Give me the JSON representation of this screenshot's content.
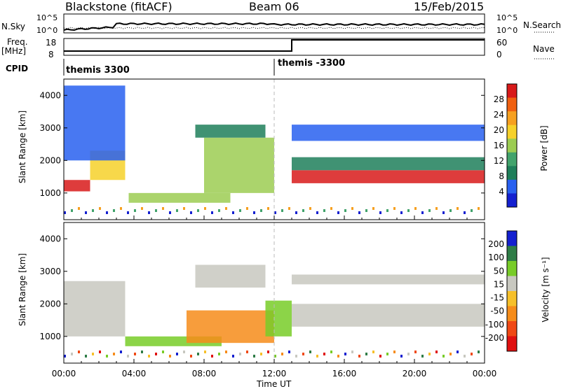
{
  "header": {
    "station": "Blackstone (fitACF)",
    "beam": "Beam 06",
    "date": "15/Feb/2015"
  },
  "noise_panel": {
    "left_label": "N.Sky",
    "right_label": "N.Search",
    "left_ticks": [
      "10^5",
      "10^0"
    ],
    "right_ticks": [
      "10^5",
      "10^0"
    ]
  },
  "freq_panel": {
    "left_label_line1": "Freq.",
    "left_label_line2": "[MHz]",
    "left_ticks": [
      "18",
      "8"
    ],
    "right_label": "Nave",
    "right_ticks": [
      "60",
      "0"
    ]
  },
  "cpid_panel": {
    "label": "CPID",
    "segments": [
      "themis 3300",
      "themis -3300"
    ],
    "segment_bounds_hours": [
      [
        0,
        12
      ],
      [
        12,
        24
      ]
    ]
  },
  "x_axis": {
    "label": "Time UT",
    "ticks": [
      "00:00",
      "04:00",
      "08:00",
      "12:00",
      "16:00",
      "20:00",
      "00:00"
    ]
  },
  "power_panel": {
    "ylabel": "Slant Range [km]",
    "yticks": [
      "1000",
      "2000",
      "3000",
      "4000"
    ],
    "colorbar_label": "Power [dB]",
    "colorbar_ticks": [
      "4",
      "8",
      "12",
      "16",
      "20",
      "24",
      "28"
    ],
    "colors": [
      "#1420d0",
      "#2860f0",
      "#1f7f5a",
      "#42a36c",
      "#9ccc52",
      "#f6d12a",
      "#f6a020",
      "#f06010",
      "#d81a1a"
    ]
  },
  "velocity_panel": {
    "ylabel": "Slant Range [km]",
    "yticks": [
      "1000",
      "2000",
      "3000",
      "4000"
    ],
    "colorbar_label": "Velocity [m s⁻¹]",
    "colorbar_ticks": [
      "200",
      "100",
      "50",
      "15",
      "-15",
      "-50",
      "-100",
      "-200"
    ],
    "colors": [
      "#1420d0",
      "#2f7d47",
      "#78cc28",
      "#c8c8c0",
      "#f6c02a",
      "#f68c1a",
      "#f04814",
      "#e01010"
    ]
  },
  "chart_data": {
    "type": "heatmap",
    "x_range_hours": [
      0,
      24
    ],
    "y_range_km": [
      180,
      4500
    ],
    "power_bands": [
      {
        "t": [
          0,
          1.5
        ],
        "r": [
          1050,
          1400
        ],
        "level": 8
      },
      {
        "t": [
          1.5,
          3.5
        ],
        "r": [
          1400,
          2300
        ],
        "level": 5
      },
      {
        "t": [
          0,
          3.5
        ],
        "r": [
          2000,
          4300
        ],
        "level": 1
      },
      {
        "t": [
          3.7,
          9.5
        ],
        "r": [
          700,
          1000
        ],
        "level": 4
      },
      {
        "t": [
          8,
          12
        ],
        "r": [
          1000,
          2700
        ],
        "level": 4
      },
      {
        "t": [
          7.5,
          11.5
        ],
        "r": [
          2700,
          3100
        ],
        "level": 2
      },
      {
        "t": [
          13,
          24
        ],
        "r": [
          1300,
          1700
        ],
        "level": 8
      },
      {
        "t": [
          13,
          24
        ],
        "r": [
          1700,
          2100
        ],
        "level": 2
      },
      {
        "t": [
          13,
          24
        ],
        "r": [
          2600,
          3100
        ],
        "level": 1
      }
    ],
    "velocity_bands": [
      {
        "t": [
          0,
          3.5
        ],
        "r": [
          1000,
          2700
        ],
        "level": 3
      },
      {
        "t": [
          3.5,
          9
        ],
        "r": [
          700,
          1000
        ],
        "level": 2
      },
      {
        "t": [
          7,
          12
        ],
        "r": [
          800,
          1800
        ],
        "level": 5
      },
      {
        "t": [
          7.5,
          11.5
        ],
        "r": [
          2500,
          3200
        ],
        "level": 3
      },
      {
        "t": [
          11.5,
          13
        ],
        "r": [
          1000,
          2100
        ],
        "level": 2
      },
      {
        "t": [
          13,
          24
        ],
        "r": [
          1300,
          2000
        ],
        "level": 3
      },
      {
        "t": [
          13,
          24
        ],
        "r": [
          2600,
          2900
        ],
        "level": 3
      }
    ]
  }
}
